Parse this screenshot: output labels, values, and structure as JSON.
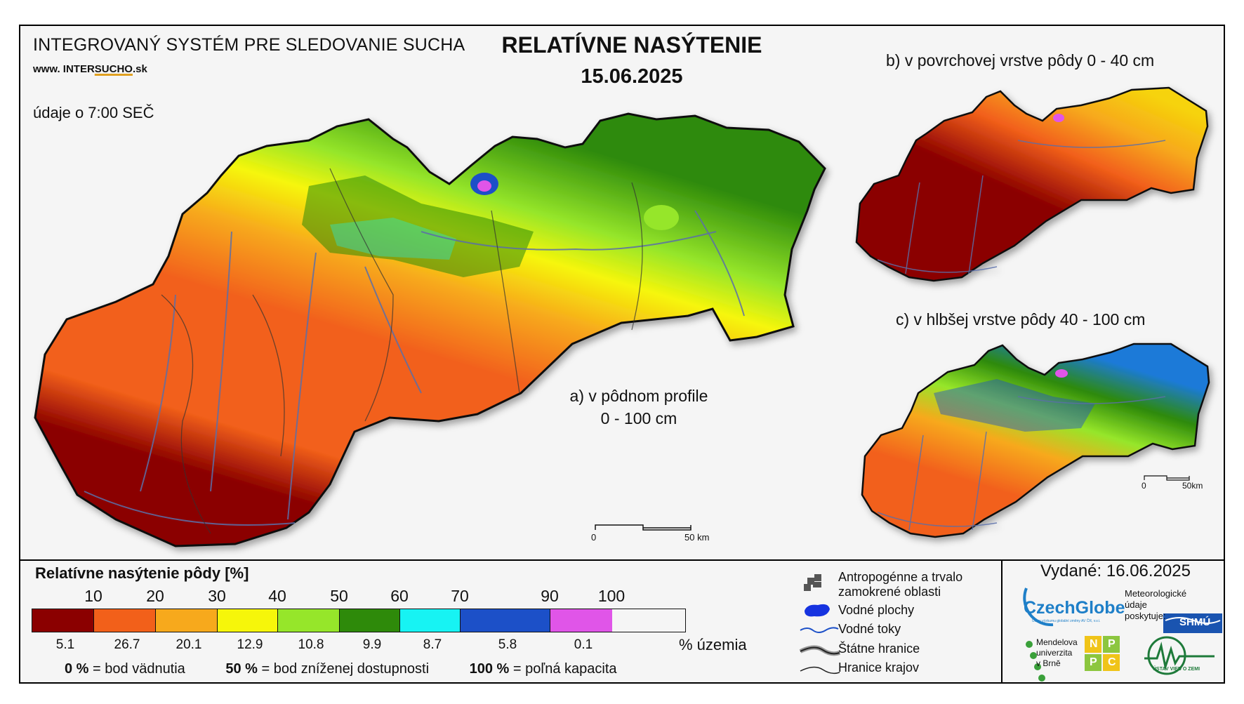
{
  "header": {
    "system_title": "INTEGROVANÝ SYSTÉM PRE SLEDOVANIE SUCHA",
    "url_prefix": "www. INTER",
    "url_brand": "SUCHO",
    "url_suffix": ".sk",
    "data_time": "údaje o 7:00 SEČ",
    "title": "RELATÍVNE NASÝTENIE",
    "date": "15.06.2025"
  },
  "maps": {
    "main_label_line1": "a) v pôdnom profile",
    "main_label_line2": "0 - 100 cm",
    "top_small_label": "b) v povrchovej vrstve pôdy 0 - 40 cm",
    "bottom_small_label": "c) v hlbšej vrstve pôdy 40 - 100 cm",
    "scale_main": {
      "zero": "0",
      "end": "50 km"
    },
    "scale_small": {
      "zero": "0",
      "end": "50km"
    }
  },
  "legend": {
    "title": "Relatívne nasýtenie pôdy [%]",
    "ticks": [
      "10",
      "20",
      "30",
      "40",
      "50",
      "60",
      "70",
      "90",
      "100"
    ],
    "classes": [
      {
        "color": "#8b0000",
        "share": "5.1"
      },
      {
        "color": "#f2601a",
        "share": "26.7"
      },
      {
        "color": "#f7a91c",
        "share": "20.1"
      },
      {
        "color": "#f6f60a",
        "share": "12.9"
      },
      {
        "color": "#96e62a",
        "share": "10.8"
      },
      {
        "color": "#2e8a0a",
        "share": "9.9"
      },
      {
        "color": "#17f3f3",
        "share": "8.7"
      },
      {
        "color": "#1c50c8",
        "share": "5.8"
      },
      {
        "color": "#e055e8",
        "share": "0.1"
      }
    ],
    "share_unit": "% územia",
    "notes": [
      {
        "value": "0 %",
        "text": "= bod vädnutia"
      },
      {
        "value": "50 %",
        "text": "= bod zníženej dostupnosti"
      },
      {
        "value": "100 %",
        "text": "= poľná kapacita"
      }
    ]
  },
  "symbols": {
    "anthropogenic_line1": "Antropogénne a trvalo",
    "anthropogenic_line2": "zamokrené oblasti",
    "water_bodies": "Vodné plochy",
    "water_streams": "Vodné toky",
    "state_border": "Štátne hranice",
    "region_border": "Hranice krajov"
  },
  "footer": {
    "issued": "Vydané: 16.06.2025",
    "czechglobe": "CzechGlobe",
    "czechglobe_sub": "Ústav výzkumu globální změny AV ČR, v.v.i.",
    "meteo_line1": "Meteorologické",
    "meteo_line2": "údaje",
    "meteo_line3": "poskytuje:",
    "shmu": "SHMÚ",
    "mendel_line1": "Mendelova",
    "mendel_line2": "univerzita",
    "mendel_line3": "v Brně",
    "npc": [
      "N",
      "P",
      "P",
      "C"
    ],
    "ustav": "ÚSTAV VIED O ZEMI"
  }
}
